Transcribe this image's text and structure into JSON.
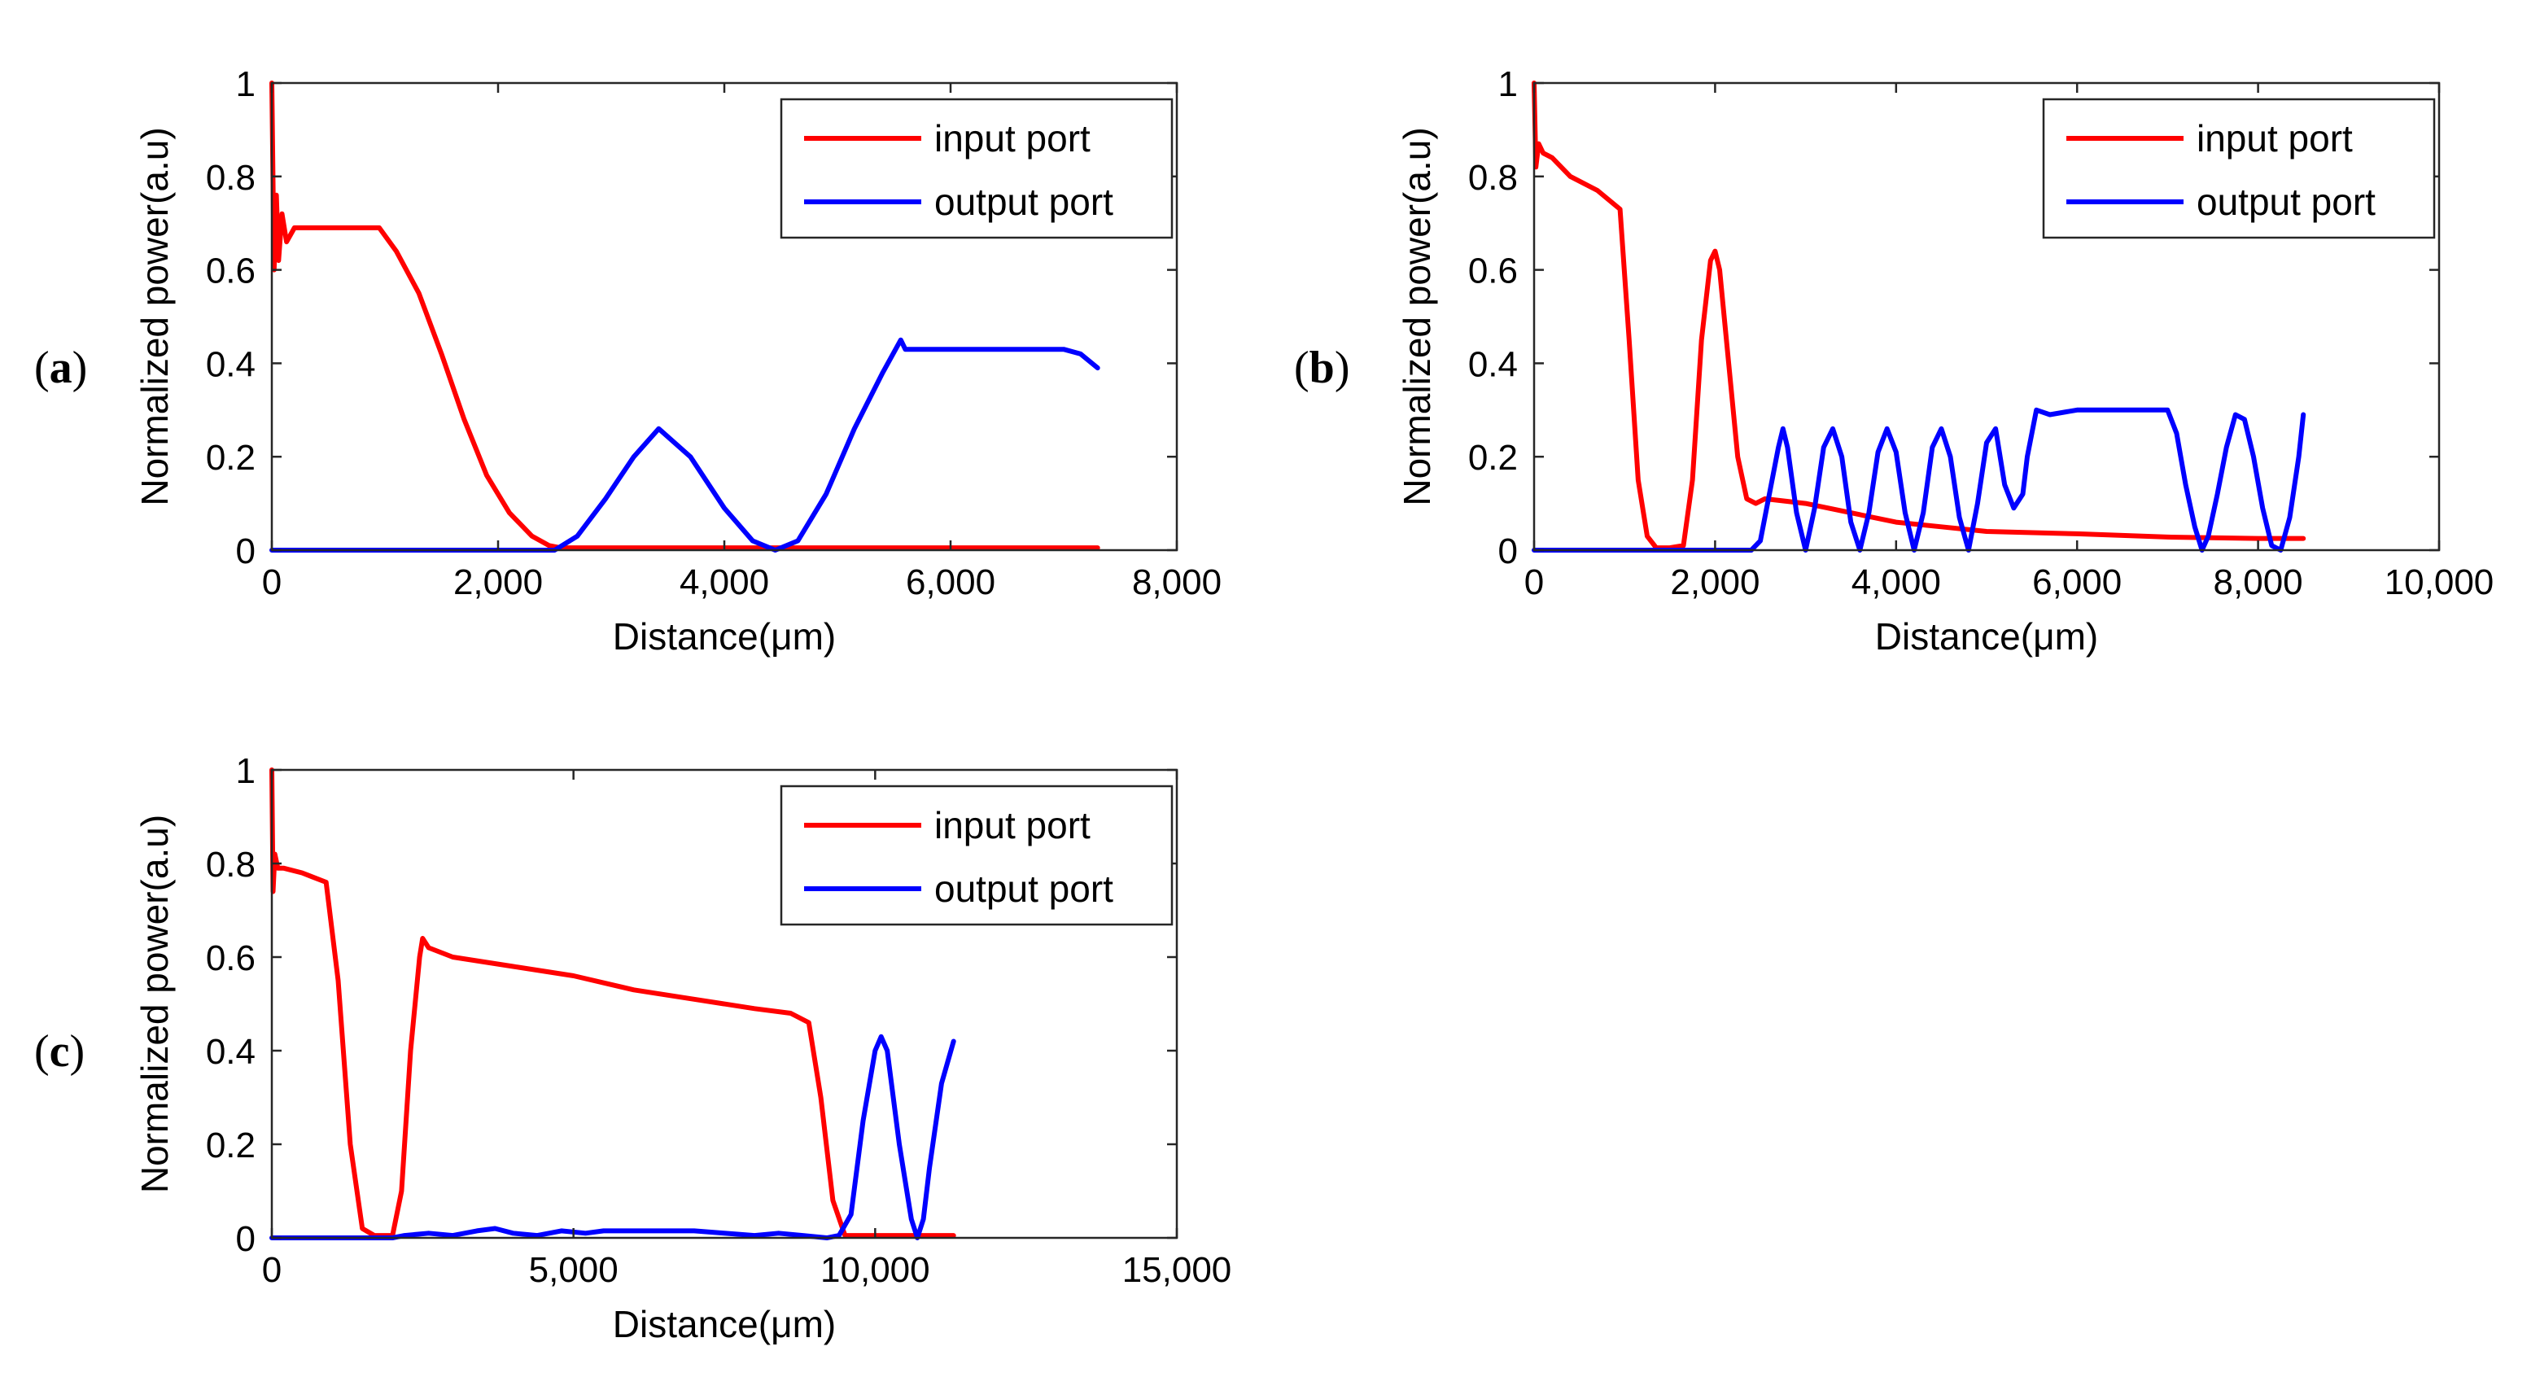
{
  "chart_data": [
    {
      "type": "line",
      "panel_label": "a",
      "xlabel": "Distance(μm)",
      "ylabel": "Normalized power(a.u)",
      "xlim": [
        0,
        8000
      ],
      "ylim": [
        0,
        1
      ],
      "xticks": [
        0,
        2000,
        4000,
        6000,
        8000
      ],
      "xtick_labels": [
        "0",
        "2,000",
        "4,000",
        "6,000",
        "8,000"
      ],
      "yticks": [
        0,
        0.2,
        0.4,
        0.6,
        0.8,
        1
      ],
      "ytick_labels": [
        "0",
        "0.2",
        "0.4",
        "0.6",
        "0.8",
        "1"
      ],
      "legend_position": "top-right",
      "series": [
        {
          "name": "input port",
          "color": "#ff0000",
          "x": [
            0,
            20,
            40,
            60,
            90,
            130,
            200,
            400,
            700,
            950,
            1100,
            1300,
            1500,
            1700,
            1900,
            2100,
            2300,
            2450,
            2550,
            3000,
            4000,
            5000,
            6000,
            7300
          ],
          "y": [
            1.0,
            0.6,
            0.76,
            0.62,
            0.72,
            0.66,
            0.69,
            0.69,
            0.69,
            0.69,
            0.64,
            0.55,
            0.42,
            0.28,
            0.16,
            0.08,
            0.03,
            0.01,
            0.005,
            0.005,
            0.005,
            0.005,
            0.005,
            0.005
          ]
        },
        {
          "name": "output port",
          "color": "#0000ff",
          "x": [
            0,
            1000,
            2000,
            2500,
            2700,
            2950,
            3200,
            3420,
            3700,
            4000,
            4250,
            4450,
            4650,
            4900,
            5150,
            5400,
            5560,
            5600,
            5800,
            6200,
            6700,
            7000,
            7150,
            7300
          ],
          "y": [
            0,
            0,
            0,
            0,
            0.03,
            0.11,
            0.2,
            0.26,
            0.2,
            0.09,
            0.02,
            0,
            0.02,
            0.12,
            0.26,
            0.38,
            0.45,
            0.43,
            0.43,
            0.43,
            0.43,
            0.43,
            0.42,
            0.39
          ]
        }
      ]
    },
    {
      "type": "line",
      "panel_label": "b",
      "xlabel": "Distance(μm)",
      "ylabel": "Normalized power(a.u)",
      "xlim": [
        0,
        10000
      ],
      "ylim": [
        0,
        1
      ],
      "xticks": [
        0,
        2000,
        4000,
        6000,
        8000,
        10000
      ],
      "xtick_labels": [
        "0",
        "2,000",
        "4,000",
        "6,000",
        "8,000",
        "10,000"
      ],
      "yticks": [
        0,
        0.2,
        0.4,
        0.6,
        0.8,
        1
      ],
      "ytick_labels": [
        "0",
        "0.2",
        "0.4",
        "0.6",
        "0.8",
        "1"
      ],
      "legend_position": "top-right",
      "series": [
        {
          "name": "input port",
          "color": "#ff0000",
          "x": [
            0,
            20,
            50,
            100,
            200,
            400,
            700,
            950,
            1050,
            1150,
            1250,
            1350,
            1500,
            1650,
            1750,
            1850,
            1950,
            2000,
            2050,
            2150,
            2250,
            2350,
            2450,
            2550,
            3000,
            4000,
            4500,
            5000,
            6000,
            7000,
            8000,
            8500
          ],
          "y": [
            1.0,
            0.82,
            0.87,
            0.85,
            0.84,
            0.8,
            0.77,
            0.73,
            0.45,
            0.15,
            0.03,
            0.005,
            0.005,
            0.01,
            0.15,
            0.45,
            0.62,
            0.64,
            0.6,
            0.4,
            0.2,
            0.11,
            0.1,
            0.11,
            0.1,
            0.06,
            0.05,
            0.04,
            0.035,
            0.028,
            0.025,
            0.025
          ]
        },
        {
          "name": "output port",
          "color": "#0000ff",
          "x": [
            0,
            1000,
            2000,
            2400,
            2500,
            2600,
            2700,
            2750,
            2800,
            2900,
            3000,
            3100,
            3200,
            3300,
            3400,
            3500,
            3600,
            3700,
            3800,
            3900,
            4000,
            4100,
            4200,
            4300,
            4400,
            4500,
            4600,
            4700,
            4800,
            4900,
            5000,
            5100,
            5200,
            5300,
            5400,
            5450,
            5550,
            5700,
            6000,
            6500,
            7000,
            7100,
            7200,
            7300,
            7380,
            7450,
            7550,
            7650,
            7750,
            7850,
            7950,
            8050,
            8150,
            8250,
            8350,
            8450,
            8500
          ],
          "y": [
            0,
            0,
            0,
            0,
            0.02,
            0.12,
            0.22,
            0.26,
            0.22,
            0.08,
            0,
            0.09,
            0.22,
            0.26,
            0.2,
            0.06,
            0,
            0.08,
            0.21,
            0.26,
            0.21,
            0.08,
            0,
            0.08,
            0.22,
            0.26,
            0.2,
            0.07,
            0,
            0.1,
            0.23,
            0.26,
            0.14,
            0.09,
            0.12,
            0.2,
            0.3,
            0.29,
            0.3,
            0.3,
            0.3,
            0.25,
            0.14,
            0.05,
            0,
            0.03,
            0.12,
            0.22,
            0.29,
            0.28,
            0.2,
            0.09,
            0.01,
            0,
            0.07,
            0.2,
            0.29
          ]
        }
      ]
    },
    {
      "type": "line",
      "panel_label": "c",
      "xlabel": "Distance(μm)",
      "ylabel": "Normalized power(a.u)",
      "xlim": [
        0,
        15000
      ],
      "ylim": [
        0,
        1
      ],
      "xticks": [
        0,
        5000,
        10000,
        15000
      ],
      "xtick_labels": [
        "0",
        "5,000",
        "10,000",
        "15,000"
      ],
      "yticks": [
        0,
        0.2,
        0.4,
        0.6,
        0.8,
        1
      ],
      "ytick_labels": [
        "0",
        "0.2",
        "0.4",
        "0.6",
        "0.8",
        "1"
      ],
      "legend_position": "top-right",
      "series": [
        {
          "name": "input port",
          "color": "#ff0000",
          "x": [
            0,
            20,
            50,
            100,
            200,
            500,
            900,
            1100,
            1300,
            1500,
            1700,
            2000,
            2150,
            2300,
            2450,
            2500,
            2600,
            3000,
            4000,
            5000,
            6000,
            7000,
            8000,
            8600,
            8900,
            9100,
            9300,
            9500,
            9700,
            10000,
            11000,
            11300
          ],
          "y": [
            1.0,
            0.74,
            0.82,
            0.79,
            0.79,
            0.78,
            0.76,
            0.55,
            0.2,
            0.02,
            0.005,
            0.005,
            0.1,
            0.4,
            0.6,
            0.64,
            0.62,
            0.6,
            0.58,
            0.56,
            0.53,
            0.51,
            0.49,
            0.48,
            0.46,
            0.3,
            0.08,
            0.005,
            0.005,
            0.005,
            0.005,
            0.005
          ]
        },
        {
          "name": "output port",
          "color": "#0000ff",
          "x": [
            0,
            1500,
            2000,
            2200,
            2600,
            3000,
            3400,
            3700,
            4000,
            4400,
            4800,
            5200,
            5500,
            6000,
            7000,
            7500,
            8000,
            8400,
            8800,
            9200,
            9400,
            9600,
            9800,
            10000,
            10100,
            10200,
            10400,
            10600,
            10700,
            10800,
            10900,
            11100,
            11300
          ],
          "y": [
            0,
            0,
            0,
            0.005,
            0.01,
            0.005,
            0.015,
            0.02,
            0.01,
            0.005,
            0.015,
            0.01,
            0.015,
            0.015,
            0.015,
            0.01,
            0.005,
            0.01,
            0.005,
            0,
            0.005,
            0.05,
            0.25,
            0.4,
            0.43,
            0.4,
            0.2,
            0.04,
            0,
            0.04,
            0.15,
            0.33,
            0.42
          ]
        }
      ]
    }
  ]
}
